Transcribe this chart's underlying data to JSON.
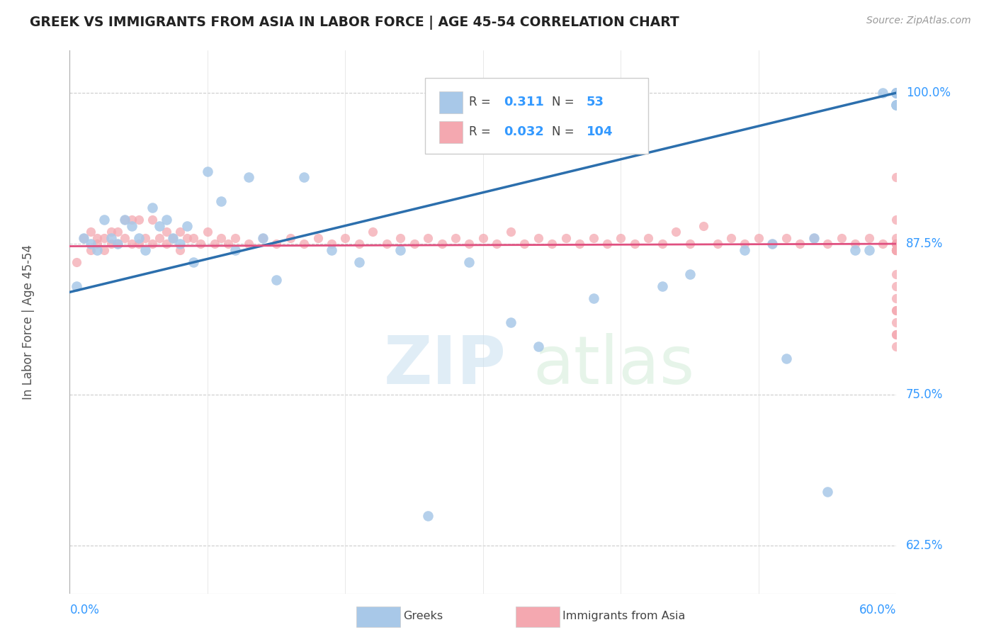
{
  "title": "GREEK VS IMMIGRANTS FROM ASIA IN LABOR FORCE | AGE 45-54 CORRELATION CHART",
  "source": "Source: ZipAtlas.com",
  "ylabel": "In Labor Force | Age 45-54",
  "xlim": [
    0.0,
    0.6
  ],
  "ylim": [
    0.585,
    1.035
  ],
  "legend_r_blue": "0.311",
  "legend_n_blue": "53",
  "legend_r_pink": "0.032",
  "legend_n_pink": "104",
  "blue_color": "#a8c8e8",
  "pink_color": "#f4a8b0",
  "line_blue": "#2c6fad",
  "line_pink": "#e05080",
  "title_color": "#222222",
  "tick_color": "#3399ff",
  "grid_color": "#cccccc",
  "blue_x": [
    0.005,
    0.01,
    0.015,
    0.02,
    0.025,
    0.03,
    0.035,
    0.04,
    0.045,
    0.05,
    0.055,
    0.06,
    0.065,
    0.07,
    0.075,
    0.08,
    0.085,
    0.09,
    0.1,
    0.11,
    0.12,
    0.13,
    0.14,
    0.15,
    0.17,
    0.19,
    0.21,
    0.24,
    0.26,
    0.29,
    0.32,
    0.34,
    0.38,
    0.43,
    0.45,
    0.49,
    0.51,
    0.52,
    0.54,
    0.55,
    0.57,
    0.58,
    0.59,
    0.6,
    0.6,
    0.6,
    0.6,
    0.6,
    0.6,
    0.6,
    0.6,
    0.6,
    0.6
  ],
  "blue_y": [
    0.84,
    0.88,
    0.875,
    0.87,
    0.895,
    0.88,
    0.875,
    0.895,
    0.89,
    0.88,
    0.87,
    0.905,
    0.89,
    0.895,
    0.88,
    0.875,
    0.89,
    0.86,
    0.935,
    0.91,
    0.87,
    0.93,
    0.88,
    0.845,
    0.93,
    0.87,
    0.86,
    0.87,
    0.65,
    0.86,
    0.81,
    0.79,
    0.83,
    0.84,
    0.85,
    0.87,
    0.875,
    0.78,
    0.88,
    0.67,
    0.87,
    0.87,
    1.0,
    1.0,
    1.0,
    1.0,
    0.99,
    0.99,
    1.0,
    1.0,
    1.0,
    0.99,
    1.0
  ],
  "pink_x": [
    0.005,
    0.01,
    0.015,
    0.015,
    0.02,
    0.02,
    0.025,
    0.025,
    0.03,
    0.03,
    0.035,
    0.035,
    0.04,
    0.04,
    0.045,
    0.045,
    0.05,
    0.05,
    0.055,
    0.06,
    0.06,
    0.065,
    0.07,
    0.07,
    0.075,
    0.08,
    0.08,
    0.085,
    0.09,
    0.095,
    0.1,
    0.105,
    0.11,
    0.115,
    0.12,
    0.13,
    0.14,
    0.15,
    0.16,
    0.17,
    0.18,
    0.19,
    0.2,
    0.21,
    0.22,
    0.23,
    0.24,
    0.25,
    0.26,
    0.27,
    0.28,
    0.29,
    0.3,
    0.31,
    0.32,
    0.33,
    0.34,
    0.35,
    0.36,
    0.37,
    0.38,
    0.39,
    0.4,
    0.41,
    0.42,
    0.43,
    0.44,
    0.45,
    0.46,
    0.47,
    0.48,
    0.49,
    0.5,
    0.51,
    0.52,
    0.53,
    0.54,
    0.55,
    0.56,
    0.57,
    0.58,
    0.59,
    0.6,
    0.6,
    0.6,
    0.6,
    0.6,
    0.6,
    0.6,
    0.6,
    0.6,
    0.6,
    0.6,
    0.6,
    0.6,
    0.6,
    0.6,
    0.6,
    0.6,
    0.6,
    0.6,
    0.6,
    0.6,
    0.6
  ],
  "pink_y": [
    0.86,
    0.88,
    0.885,
    0.87,
    0.88,
    0.875,
    0.88,
    0.87,
    0.885,
    0.875,
    0.885,
    0.875,
    0.895,
    0.88,
    0.895,
    0.875,
    0.895,
    0.875,
    0.88,
    0.895,
    0.875,
    0.88,
    0.885,
    0.875,
    0.88,
    0.885,
    0.87,
    0.88,
    0.88,
    0.875,
    0.885,
    0.875,
    0.88,
    0.875,
    0.88,
    0.875,
    0.88,
    0.875,
    0.88,
    0.875,
    0.88,
    0.875,
    0.88,
    0.875,
    0.885,
    0.875,
    0.88,
    0.875,
    0.88,
    0.875,
    0.88,
    0.875,
    0.88,
    0.875,
    0.885,
    0.875,
    0.88,
    0.875,
    0.88,
    0.875,
    0.88,
    0.875,
    0.88,
    0.875,
    0.88,
    0.875,
    0.885,
    0.875,
    0.89,
    0.875,
    0.88,
    0.875,
    0.88,
    0.875,
    0.88,
    0.875,
    0.88,
    0.875,
    0.88,
    0.875,
    0.88,
    0.875,
    0.93,
    0.895,
    0.88,
    0.875,
    0.87,
    0.85,
    0.84,
    0.83,
    0.82,
    0.8,
    0.79,
    0.82,
    0.81,
    0.8,
    0.875,
    0.875,
    0.875,
    0.87,
    0.87,
    0.87,
    0.87,
    0.87
  ],
  "blue_line_x0": 0.0,
  "blue_line_y0": 0.835,
  "blue_line_x1": 0.6,
  "blue_line_y1": 1.0,
  "pink_line_x0": 0.0,
  "pink_line_y0": 0.873,
  "pink_line_x1": 0.6,
  "pink_line_y1": 0.875,
  "ytick_vals": [
    0.625,
    0.75,
    0.875,
    1.0
  ],
  "ytick_labels": [
    "62.5%",
    "75.0%",
    "87.5%",
    "100.0%"
  ]
}
